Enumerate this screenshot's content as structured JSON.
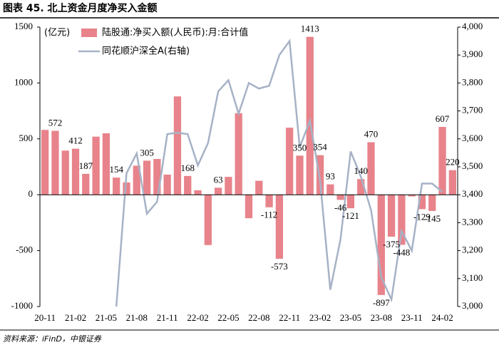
{
  "title": "图表 45. 北上资金月度净买入金额",
  "source": "资料来源：iFinD，中银证券",
  "chart_data": {
    "type": "bar_line",
    "ylabel": "(亿元)",
    "categories": [
      "20-11",
      null,
      null,
      "21-02",
      null,
      null,
      "21-05",
      null,
      null,
      "21-08",
      null,
      null,
      "21-11",
      null,
      null,
      "22-02",
      null,
      null,
      "22-05",
      null,
      null,
      "22-08",
      null,
      null,
      "22-11",
      null,
      null,
      "23-02",
      null,
      null,
      "23-05",
      null,
      null,
      "23-08",
      null,
      null,
      "23-11",
      null,
      null,
      "24-02",
      null
    ],
    "series": [
      {
        "name": "陆股通:净买入额(人民币):月:合计值",
        "type": "bar",
        "color": "#e8838b",
        "values": [
          580,
          572,
          395,
          412,
          187,
          520,
          550,
          154,
          110,
          260,
          305,
          320,
          180,
          880,
          168,
          40,
          -450,
          63,
          160,
          730,
          -210,
          125,
          -112,
          -573,
          600,
          350,
          1413,
          354,
          93,
          -46,
          -121,
          140,
          470,
          -897,
          -375,
          -448,
          -15,
          -129,
          -145,
          607,
          220
        ],
        "value_labels": [
          null,
          "572",
          null,
          "412",
          "187",
          null,
          null,
          "154",
          null,
          null,
          "305",
          null,
          null,
          null,
          "168",
          null,
          null,
          "63",
          null,
          null,
          null,
          null,
          "-112",
          "-573",
          null,
          "350",
          "1413",
          "354",
          "93",
          "-46",
          "-121",
          "140",
          "470",
          "-897",
          "-375",
          "-448",
          null,
          "-129",
          "-145",
          "607",
          "220"
        ]
      },
      {
        "name": "同花顺沪深全A(右轴)",
        "type": "line",
        "axis": "y2",
        "color": "#a7b2c6",
        "values": [
          null,
          null,
          null,
          null,
          null,
          null,
          null,
          3000,
          3477,
          3548,
          3332,
          3375,
          3617,
          3622,
          3617,
          3505,
          3585,
          3770,
          3810,
          3690,
          3800,
          3780,
          3790,
          3900,
          3950,
          3570,
          3665,
          3450,
          3060,
          3240,
          3555,
          3465,
          3345,
          3105,
          3025,
          3270,
          3200,
          3440,
          3440,
          3410,
          null
        ]
      }
    ],
    "ylim": [
      -1000,
      1500
    ],
    "yticks": [
      -1000,
      -500,
      0,
      500,
      1000,
      1500
    ],
    "y2lim": [
      3000,
      4000
    ],
    "y2ticks": [
      {
        "value": 3000,
        "label": "3,000"
      },
      {
        "value": 3100,
        "label": "3,100"
      },
      {
        "value": 3200,
        "label": "3,200"
      },
      {
        "value": 3300,
        "label": "3,300"
      },
      {
        "value": 3400,
        "label": "3,400"
      },
      {
        "value": 3500,
        "label": "3,500"
      },
      {
        "value": 3600,
        "label": "3,600"
      },
      {
        "value": 3700,
        "label": "3,700"
      },
      {
        "value": 3800,
        "label": "3,800"
      },
      {
        "value": 3900,
        "label": "3,900"
      },
      {
        "value": 4000,
        "label": "4,000"
      }
    ]
  }
}
